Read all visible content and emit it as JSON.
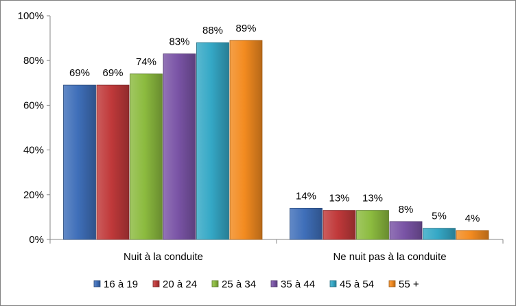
{
  "chart_data": {
    "type": "bar",
    "categories": [
      "Nuit à la conduite",
      "Ne nuit pas à la conduite"
    ],
    "series": [
      {
        "name": "16 à 19",
        "values": [
          69,
          14
        ],
        "color": "#3f6fb9"
      },
      {
        "name": "20 à 24",
        "values": [
          69,
          13
        ],
        "color": "#c0393a"
      },
      {
        "name": "25 à 34",
        "values": [
          74,
          13
        ],
        "color": "#8cbb3f"
      },
      {
        "name": "35 à 44",
        "values": [
          83,
          8
        ],
        "color": "#7a54a6"
      },
      {
        "name": "45 à 54",
        "values": [
          88,
          5
        ],
        "color": "#35a8c6"
      },
      {
        "name": "55 +",
        "values": [
          89,
          4
        ],
        "color": "#f38b20"
      }
    ],
    "value_labels": [
      [
        "69%",
        "14%"
      ],
      [
        "69%",
        "13%"
      ],
      [
        "74%",
        "13%"
      ],
      [
        "83%",
        "8%"
      ],
      [
        "88%",
        "5%"
      ],
      [
        "89%",
        "4%"
      ]
    ],
    "yticks": [
      "0%",
      "20%",
      "40%",
      "60%",
      "80%",
      "100%"
    ],
    "ylim": [
      0,
      100
    ],
    "legend_position": "bottom",
    "grid": false
  }
}
